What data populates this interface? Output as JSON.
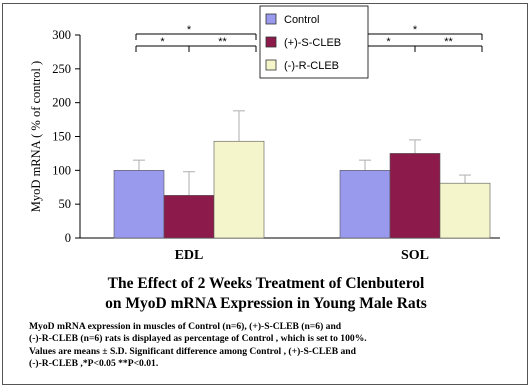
{
  "chart_data": {
    "type": "bar",
    "ylabel": "MyoD mRNA ( % of control )",
    "ylim": [
      0,
      300
    ],
    "yticks": [
      "0",
      "50",
      "100",
      "150",
      "200",
      "250",
      "300"
    ],
    "categories": [
      "EDL",
      "SOL"
    ],
    "series": [
      {
        "name": "Control",
        "values": [
          100,
          100
        ],
        "errors": [
          15,
          15
        ],
        "color": "#9999ee"
      },
      {
        "name": "(+)-S-CLEB",
        "values": [
          63,
          125
        ],
        "errors": [
          35,
          20
        ],
        "color": "#8c1a4a"
      },
      {
        "name": "(-)-R-CLEB",
        "values": [
          143,
          81
        ],
        "errors": [
          45,
          12
        ],
        "color": "#f5f5cc"
      }
    ],
    "significance": {
      "outer": "*",
      "inner_left": "*",
      "inner_right": "**"
    },
    "legend_position": "top-center",
    "grid": false
  },
  "title": {
    "line1": "The Effect of 2 Weeks Treatment of Clenbuterol",
    "line2": "on MyoD mRNA Expression in Young Male Rats"
  },
  "footnote": {
    "line1": "MyoD mRNA expression in muscles of Control (n=6), (+)-S-CLEB (n=6) and",
    "line2": "(-)-R-CLEB (n=6) rats is displayed as percentage of Control , which is set to 100%.",
    "line3": "Values are means ± S.D. Significant difference among Control , (+)-S-CLEB and",
    "line4": "(-)-R-CLEB ,*P<0.05 **P<0.01."
  }
}
